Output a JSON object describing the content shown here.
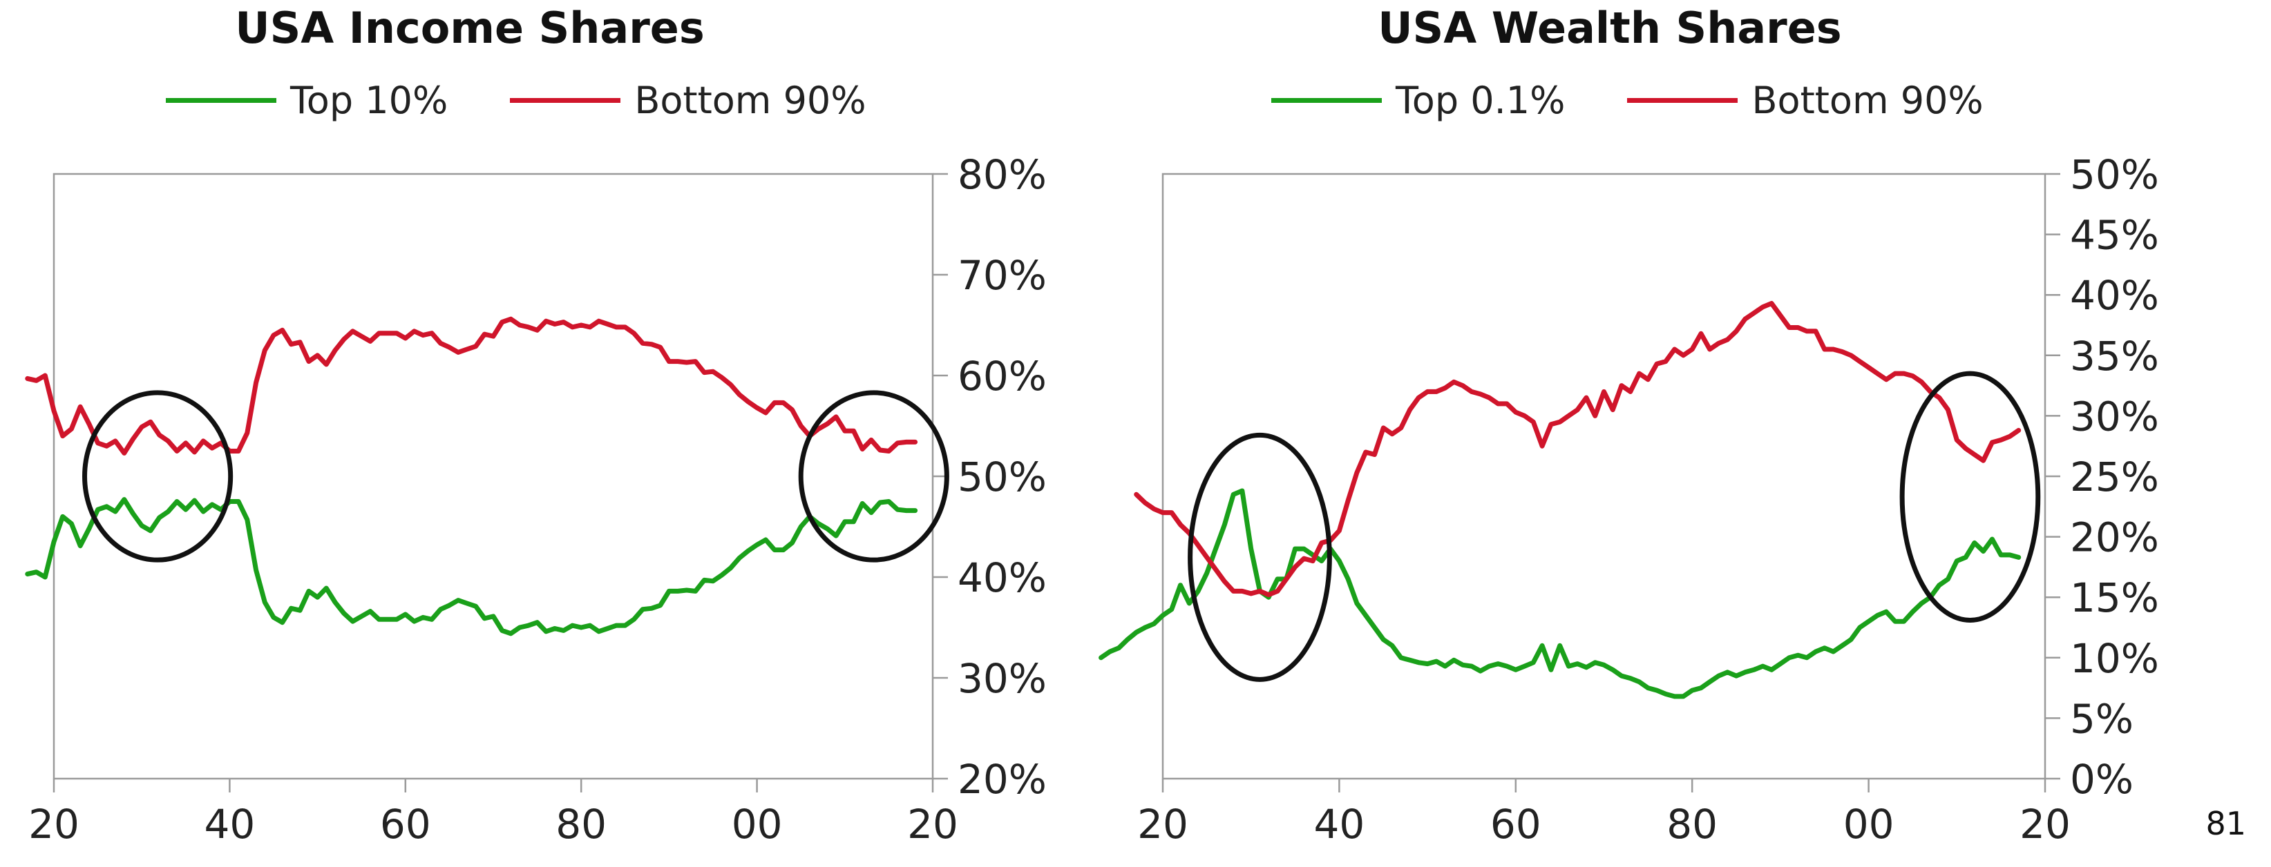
{
  "page_number": "81",
  "chart_data": [
    {
      "type": "line",
      "title": "USA Income Shares",
      "xlabel": "",
      "ylabel": "",
      "x_tick_labels": [
        "20",
        "40",
        "60",
        "80",
        "00",
        "20"
      ],
      "x_ticks": [
        1920,
        1940,
        1960,
        1980,
        2000,
        2020
      ],
      "xlim": [
        1920,
        2020
      ],
      "y_tick_labels": [
        "20%",
        "30%",
        "40%",
        "50%",
        "60%",
        "70%",
        "80%"
      ],
      "y_ticks": [
        20,
        30,
        40,
        50,
        60,
        70,
        80
      ],
      "ylim": [
        20,
        80
      ],
      "y_axis_side": "right",
      "grid": false,
      "legend_position": "top",
      "annotations": [
        {
          "type": "ellipse",
          "center": [
            1931.8,
            50
          ],
          "radii": [
            8.3,
            8.3
          ]
        },
        {
          "type": "ellipse",
          "center": [
            2013.3,
            50
          ],
          "radii": [
            8.3,
            8.3
          ]
        }
      ],
      "series": [
        {
          "name": "Top 10%",
          "color": "#1aa01a",
          "x": [
            1917,
            1918,
            1919,
            1920,
            1921,
            1922,
            1923,
            1924,
            1925,
            1926,
            1927,
            1928,
            1929,
            1930,
            1931,
            1932,
            1933,
            1934,
            1935,
            1936,
            1937,
            1938,
            1939,
            1940,
            1941,
            1942,
            1943,
            1944,
            1945,
            1946,
            1947,
            1948,
            1949,
            1950,
            1951,
            1952,
            1953,
            1954,
            1955,
            1956,
            1957,
            1958,
            1959,
            1960,
            1961,
            1962,
            1963,
            1964,
            1965,
            1966,
            1967,
            1968,
            1969,
            1970,
            1971,
            1972,
            1973,
            1974,
            1975,
            1976,
            1977,
            1978,
            1979,
            1980,
            1981,
            1982,
            1983,
            1984,
            1985,
            1986,
            1987,
            1988,
            1989,
            1990,
            1991,
            1992,
            1993,
            1994,
            1995,
            1996,
            1997,
            1998,
            1999,
            2000,
            2001,
            2002,
            2003,
            2004,
            2005,
            2006,
            2007,
            2008,
            2009,
            2010,
            2011,
            2012,
            2013,
            2014,
            2015,
            2016,
            2017,
            2018
          ],
          "values": [
            40.3,
            40.5,
            40.0,
            43.5,
            46.0,
            45.3,
            43.1,
            44.8,
            46.7,
            47.0,
            46.5,
            47.7,
            46.3,
            45.1,
            44.6,
            45.9,
            46.5,
            47.5,
            46.7,
            47.6,
            46.5,
            47.2,
            46.7,
            47.5,
            47.5,
            45.7,
            40.7,
            37.5,
            36.0,
            35.5,
            36.9,
            36.7,
            38.6,
            38.0,
            38.9,
            37.5,
            36.4,
            35.6,
            36.1,
            36.6,
            35.8,
            35.8,
            35.8,
            36.3,
            35.6,
            36.0,
            35.8,
            36.8,
            37.2,
            37.7,
            37.4,
            37.1,
            35.9,
            36.1,
            34.7,
            34.4,
            35.0,
            35.2,
            35.5,
            34.6,
            34.9,
            34.7,
            35.2,
            35.0,
            35.2,
            34.6,
            34.9,
            35.2,
            35.2,
            35.8,
            36.8,
            36.9,
            37.2,
            38.6,
            38.6,
            38.7,
            38.6,
            39.7,
            39.6,
            40.2,
            40.9,
            41.9,
            42.6,
            43.2,
            43.7,
            42.7,
            42.7,
            43.4,
            45.0,
            46.0,
            45.3,
            44.8,
            44.1,
            45.5,
            45.5,
            47.3,
            46.4,
            47.4,
            47.5,
            46.7,
            46.6,
            46.6
          ]
        },
        {
          "name": "Bottom 90%",
          "color": "#d0152b",
          "x": [
            1917,
            1918,
            1919,
            1920,
            1921,
            1922,
            1923,
            1924,
            1925,
            1926,
            1927,
            1928,
            1929,
            1930,
            1931,
            1932,
            1933,
            1934,
            1935,
            1936,
            1937,
            1938,
            1939,
            1940,
            1941,
            1942,
            1943,
            1944,
            1945,
            1946,
            1947,
            1948,
            1949,
            1950,
            1951,
            1952,
            1953,
            1954,
            1955,
            1956,
            1957,
            1958,
            1959,
            1960,
            1961,
            1962,
            1963,
            1964,
            1965,
            1966,
            1967,
            1968,
            1969,
            1970,
            1971,
            1972,
            1973,
            1974,
            1975,
            1976,
            1977,
            1978,
            1979,
            1980,
            1981,
            1982,
            1983,
            1984,
            1985,
            1986,
            1987,
            1988,
            1989,
            1990,
            1991,
            1992,
            1993,
            1994,
            1995,
            1996,
            1997,
            1998,
            1999,
            2000,
            2001,
            2002,
            2003,
            2004,
            2005,
            2006,
            2007,
            2008,
            2009,
            2010,
            2011,
            2012,
            2013,
            2014,
            2015,
            2016,
            2017,
            2018
          ],
          "values": [
            59.7,
            59.5,
            60.0,
            56.5,
            54.0,
            54.7,
            56.9,
            55.2,
            53.3,
            53.0,
            53.5,
            52.3,
            53.7,
            54.9,
            55.4,
            54.1,
            53.5,
            52.5,
            53.3,
            52.4,
            53.5,
            52.8,
            53.3,
            52.5,
            52.5,
            54.3,
            59.3,
            62.5,
            64.0,
            64.5,
            63.1,
            63.3,
            61.4,
            62.0,
            61.1,
            62.5,
            63.6,
            64.4,
            63.9,
            63.4,
            64.2,
            64.2,
            64.2,
            63.7,
            64.4,
            64.0,
            64.2,
            63.2,
            62.8,
            62.3,
            62.6,
            62.9,
            64.1,
            63.9,
            65.3,
            65.6,
            65.0,
            64.8,
            64.5,
            65.4,
            65.1,
            65.3,
            64.8,
            65.0,
            64.8,
            65.4,
            65.1,
            64.8,
            64.8,
            64.2,
            63.2,
            63.1,
            62.8,
            61.4,
            61.4,
            61.3,
            61.4,
            60.3,
            60.4,
            59.8,
            59.1,
            58.1,
            57.4,
            56.8,
            56.3,
            57.3,
            57.3,
            56.6,
            55.0,
            54.0,
            54.7,
            55.2,
            55.9,
            54.5,
            54.5,
            52.7,
            53.6,
            52.6,
            52.5,
            53.3,
            53.4,
            53.4
          ]
        }
      ]
    },
    {
      "type": "line",
      "title": "USA Wealth Shares",
      "xlabel": "",
      "ylabel": "",
      "x_tick_labels": [
        "20",
        "40",
        "60",
        "80",
        "00",
        "20"
      ],
      "x_ticks": [
        1920,
        1940,
        1960,
        1980,
        2000,
        2020
      ],
      "xlim": [
        1920,
        2020
      ],
      "y_tick_labels": [
        "0%",
        "5%",
        "10%",
        "15%",
        "20%",
        "25%",
        "30%",
        "35%",
        "40%",
        "45%",
        "50%"
      ],
      "y_ticks": [
        0,
        5,
        10,
        15,
        20,
        25,
        30,
        35,
        40,
        45,
        50
      ],
      "ylim": [
        0,
        50
      ],
      "y_axis_side": "right",
      "grid": false,
      "legend_position": "top",
      "annotations": [
        {
          "type": "ellipse",
          "center": [
            1931.0,
            18.3
          ],
          "radii": [
            7.9,
            10.1
          ]
        },
        {
          "type": "ellipse",
          "center": [
            2011.5,
            23.3
          ],
          "radii": [
            7.7,
            10.2
          ]
        }
      ],
      "series": [
        {
          "name": "Top 0.1%",
          "color": "#1aa01a",
          "x": [
            1913,
            1914,
            1915,
            1916,
            1917,
            1918,
            1919,
            1920,
            1921,
            1922,
            1923,
            1924,
            1925,
            1926,
            1927,
            1928,
            1929,
            1930,
            1931,
            1932,
            1933,
            1934,
            1935,
            1936,
            1937,
            1938,
            1939,
            1940,
            1941,
            1942,
            1943,
            1944,
            1945,
            1946,
            1947,
            1948,
            1949,
            1950,
            1951,
            1952,
            1953,
            1954,
            1955,
            1956,
            1957,
            1958,
            1959,
            1960,
            1961,
            1962,
            1963,
            1964,
            1965,
            1966,
            1967,
            1968,
            1969,
            1970,
            1971,
            1972,
            1973,
            1974,
            1975,
            1976,
            1977,
            1978,
            1979,
            1980,
            1981,
            1982,
            1983,
            1984,
            1985,
            1986,
            1987,
            1988,
            1989,
            1990,
            1991,
            1992,
            1993,
            1994,
            1995,
            1996,
            1997,
            1998,
            1999,
            2000,
            2001,
            2002,
            2003,
            2004,
            2005,
            2006,
            2007,
            2008,
            2009,
            2010,
            2011,
            2012,
            2013,
            2014,
            2015,
            2016,
            2017
          ],
          "values": [
            10.0,
            10.5,
            10.8,
            11.5,
            12.1,
            12.5,
            12.8,
            13.5,
            14.0,
            16.0,
            14.5,
            15.5,
            17.0,
            19.0,
            21.0,
            23.5,
            23.8,
            19.0,
            15.5,
            15.0,
            16.5,
            16.5,
            19.0,
            19.0,
            18.5,
            18.0,
            19.0,
            18.0,
            16.5,
            14.5,
            13.5,
            12.5,
            11.5,
            11.0,
            10.0,
            9.8,
            9.6,
            9.5,
            9.7,
            9.3,
            9.8,
            9.4,
            9.3,
            8.9,
            9.3,
            9.5,
            9.3,
            9.0,
            9.3,
            9.6,
            11.0,
            9.0,
            11.0,
            9.3,
            9.5,
            9.2,
            9.6,
            9.4,
            9.0,
            8.5,
            8.3,
            8.0,
            7.5,
            7.3,
            7.0,
            6.8,
            6.8,
            7.3,
            7.5,
            8.0,
            8.5,
            8.8,
            8.5,
            8.8,
            9.0,
            9.3,
            9.0,
            9.5,
            10.0,
            10.2,
            10.0,
            10.5,
            10.8,
            10.5,
            11.0,
            11.5,
            12.5,
            13.0,
            13.5,
            13.8,
            13.0,
            13.0,
            13.8,
            14.5,
            15.0,
            16.0,
            16.5,
            18.0,
            18.3,
            19.5,
            18.8,
            19.8,
            18.5,
            18.5,
            18.3
          ]
        },
        {
          "name": "Bottom 90%",
          "color": "#d0152b",
          "x": [
            1917,
            1918,
            1919,
            1920,
            1921,
            1922,
            1923,
            1924,
            1925,
            1926,
            1927,
            1928,
            1929,
            1930,
            1931,
            1932,
            1933,
            1934,
            1935,
            1936,
            1937,
            1938,
            1939,
            1940,
            1941,
            1942,
            1943,
            1944,
            1945,
            1946,
            1947,
            1948,
            1949,
            1950,
            1951,
            1952,
            1953,
            1954,
            1955,
            1956,
            1957,
            1958,
            1959,
            1960,
            1961,
            1962,
            1963,
            1964,
            1965,
            1966,
            1967,
            1968,
            1969,
            1970,
            1971,
            1972,
            1973,
            1974,
            1975,
            1976,
            1977,
            1978,
            1979,
            1980,
            1981,
            1982,
            1983,
            1984,
            1985,
            1986,
            1987,
            1988,
            1989,
            1990,
            1991,
            1992,
            1993,
            1994,
            1995,
            1996,
            1997,
            1998,
            1999,
            2000,
            2001,
            2002,
            2003,
            2004,
            2005,
            2006,
            2007,
            2008,
            2009,
            2010,
            2011,
            2012,
            2013,
            2014,
            2015,
            2016,
            2017
          ],
          "values": [
            23.5,
            22.8,
            22.3,
            22.0,
            22.0,
            21.0,
            20.3,
            19.3,
            18.3,
            17.3,
            16.3,
            15.5,
            15.5,
            15.3,
            15.5,
            15.2,
            15.5,
            16.5,
            17.5,
            18.2,
            18.0,
            19.5,
            19.7,
            20.5,
            23.0,
            25.3,
            27.0,
            26.8,
            29.0,
            28.5,
            29.0,
            30.5,
            31.5,
            32.0,
            32.0,
            32.3,
            32.8,
            32.5,
            32.0,
            31.8,
            31.5,
            31.0,
            31.0,
            30.3,
            30.0,
            29.5,
            27.5,
            29.3,
            29.5,
            30.0,
            30.5,
            31.5,
            30.0,
            32.0,
            30.5,
            32.5,
            32.0,
            33.5,
            33.0,
            34.3,
            34.5,
            35.5,
            35.0,
            35.5,
            36.8,
            35.5,
            36.0,
            36.3,
            37.0,
            38.0,
            38.5,
            39.0,
            39.3,
            38.3,
            37.3,
            37.3,
            37.0,
            37.0,
            35.5,
            35.5,
            35.3,
            35.0,
            34.5,
            34.0,
            33.5,
            33.0,
            33.5,
            33.5,
            33.3,
            32.8,
            32.0,
            31.5,
            30.5,
            28.0,
            27.3,
            26.8,
            26.3,
            27.8,
            28.0,
            28.3,
            28.8
          ]
        }
      ]
    }
  ]
}
